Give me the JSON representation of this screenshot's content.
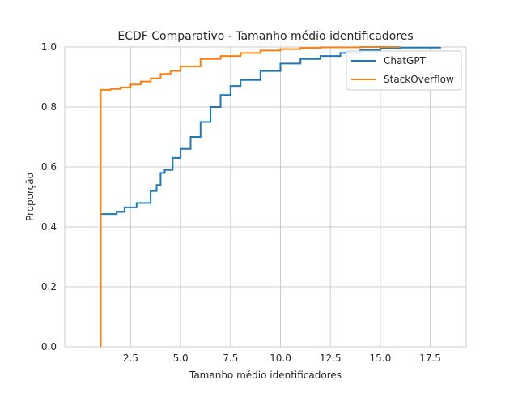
{
  "chart_data": {
    "type": "line",
    "title": "ECDF Comparativo - Tamanho médio identificadores",
    "xlabel": "Tamanho médio identificadores",
    "ylabel": "Proporção",
    "xlim": [
      -0.8,
      19.3
    ],
    "ylim": [
      0.0,
      1.0
    ],
    "xticks": [
      2.5,
      5.0,
      7.5,
      10.0,
      12.5,
      15.0,
      17.5
    ],
    "xtick_labels": [
      "2.5",
      "5.0",
      "7.5",
      "10.0",
      "12.5",
      "15.0",
      "17.5"
    ],
    "yticks": [
      0.0,
      0.2,
      0.4,
      0.6,
      0.8,
      1.0
    ],
    "ytick_labels": [
      "0.0",
      "0.2",
      "0.4",
      "0.6",
      "0.8",
      "1.0"
    ],
    "grid": true,
    "legend_position": "upper right",
    "series": [
      {
        "name": "ChatGPT",
        "color": "#1f77b4",
        "x": [
          1.0,
          1.0,
          1.8,
          2.2,
          2.8,
          3.5,
          3.8,
          4.0,
          4.2,
          4.6,
          5.0,
          5.5,
          6.0,
          6.5,
          7.0,
          7.5,
          8.0,
          9.0,
          10.0,
          11.0,
          12.0,
          13.0,
          14.0,
          15.0,
          16.0,
          18.0
        ],
        "y": [
          0.0,
          0.443,
          0.45,
          0.465,
          0.48,
          0.52,
          0.54,
          0.58,
          0.59,
          0.63,
          0.66,
          0.7,
          0.75,
          0.8,
          0.84,
          0.87,
          0.89,
          0.92,
          0.945,
          0.96,
          0.97,
          0.98,
          0.99,
          0.995,
          0.998,
          1.0
        ]
      },
      {
        "name": "StackOverflow",
        "color": "#ff7f0e",
        "x": [
          1.0,
          1.0,
          1.5,
          2.0,
          2.5,
          3.0,
          3.5,
          4.0,
          4.5,
          5.0,
          6.0,
          7.0,
          8.0,
          9.0,
          10.0,
          11.0,
          12.0,
          14.0,
          16.0
        ],
        "y": [
          0.0,
          0.857,
          0.86,
          0.865,
          0.875,
          0.885,
          0.895,
          0.91,
          0.92,
          0.935,
          0.96,
          0.97,
          0.98,
          0.988,
          0.993,
          0.997,
          0.999,
          1.0,
          1.0
        ]
      }
    ]
  }
}
